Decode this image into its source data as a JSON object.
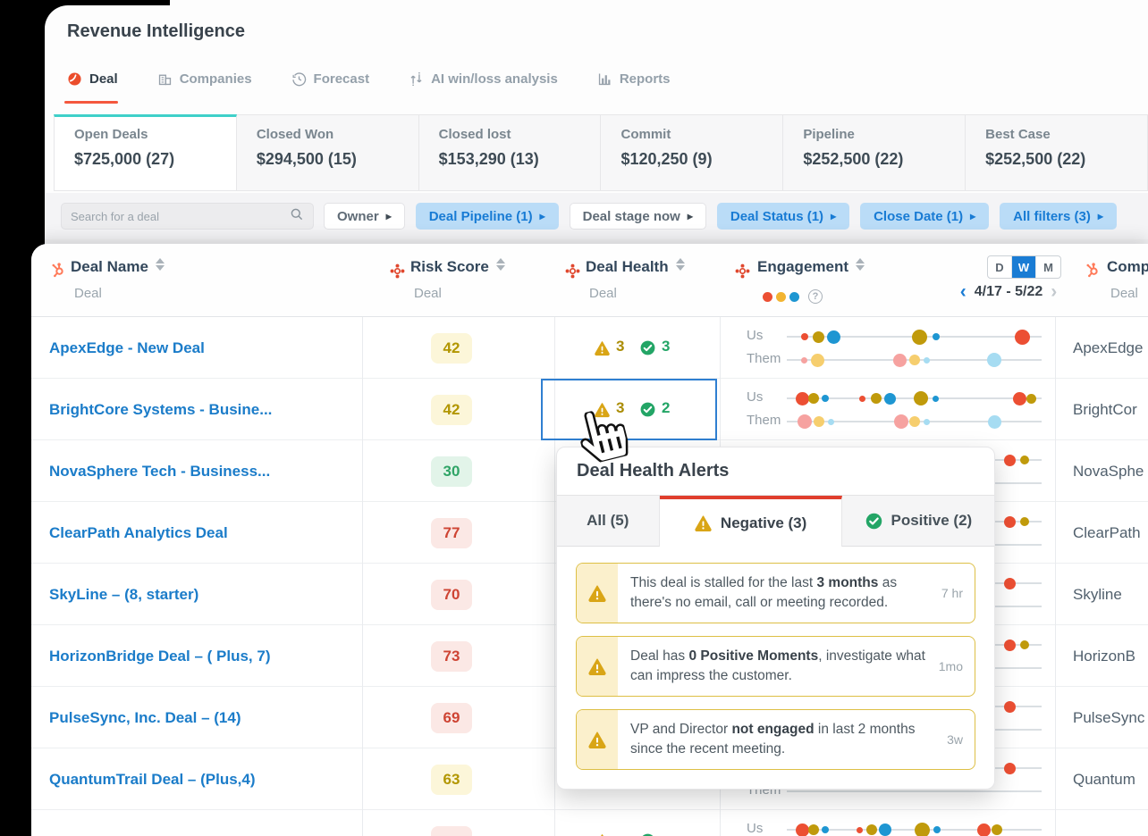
{
  "app": {
    "title": "Revenue Intelligence"
  },
  "nav": {
    "tabs": [
      {
        "label": "Deal",
        "active": true
      },
      {
        "label": "Companies",
        "active": false
      },
      {
        "label": "Forecast",
        "active": false
      },
      {
        "label": "AI win/loss analysis",
        "active": false
      },
      {
        "label": "Reports",
        "active": false
      }
    ]
  },
  "summary_cards": [
    {
      "label": "Open Deals",
      "value": "$725,000 (27)",
      "active": true
    },
    {
      "label": "Closed Won",
      "value": "$294,500 (15)",
      "active": false
    },
    {
      "label": "Closed lost",
      "value": "$153,290 (13)",
      "active": false
    },
    {
      "label": "Commit",
      "value": "$120,250 (9)",
      "active": false
    },
    {
      "label": "Pipeline",
      "value": "$252,500 (22)",
      "active": false
    },
    {
      "label": "Best Case",
      "value": "$252,500 (22)",
      "active": false
    }
  ],
  "filters": {
    "search_placeholder": "Search for a deal",
    "chips": [
      {
        "label": "Owner",
        "active": false
      },
      {
        "label": "Deal Pipeline (1)",
        "active": true
      },
      {
        "label": "Deal stage now",
        "active": false
      },
      {
        "label": "Deal Status (1)",
        "active": true
      },
      {
        "label": "Close Date (1)",
        "active": true
      },
      {
        "label": "All filters (3)",
        "active": true
      }
    ]
  },
  "table": {
    "columns": [
      {
        "label": "Deal Name",
        "sub": "Deal"
      },
      {
        "label": "Risk Score",
        "sub": "Deal"
      },
      {
        "label": "Deal Health",
        "sub": "Deal"
      },
      {
        "label": "Engagement",
        "sub": ""
      },
      {
        "label": "Comp",
        "sub": "Deal"
      }
    ],
    "period_toggle": {
      "options": [
        "D",
        "W",
        "M"
      ],
      "active": "W"
    },
    "date_range": "4/17 - 5/22",
    "help_glyph": "?",
    "engagement_row_labels": [
      "Us",
      "Them"
    ],
    "rows": [
      {
        "deal": "ApexEdge - New Deal",
        "risk": "42",
        "risk_level": "yellow",
        "health": {
          "neg": "3",
          "pos": "3"
        },
        "company": "ApexEdge",
        "selected": false,
        "engagement": {
          "us": [
            [
              0.07,
              8,
              "red"
            ],
            [
              0.125,
              13,
              "gold"
            ],
            [
              0.185,
              15,
              "blue"
            ],
            [
              0.52,
              17,
              "gold"
            ],
            [
              0.585,
              8,
              "blue"
            ],
            [
              0.925,
              17,
              "red"
            ]
          ],
          "them": [
            [
              0.07,
              7,
              "pink"
            ],
            [
              0.12,
              15,
              "lgold"
            ],
            [
              0.445,
              15,
              "pink"
            ],
            [
              0.5,
              12,
              "lgold"
            ],
            [
              0.55,
              7,
              "lblue"
            ],
            [
              0.815,
              16,
              "lblue"
            ]
          ]
        }
      },
      {
        "deal": "BrightCore Systems - Busine...",
        "risk": "42",
        "risk_level": "yellow",
        "health": {
          "neg": "3",
          "pos": "2"
        },
        "company": "BrightCor",
        "selected": true,
        "engagement": {
          "us": [
            [
              0.06,
              15,
              "red"
            ],
            [
              0.105,
              12,
              "gold"
            ],
            [
              0.15,
              8,
              "blue"
            ],
            [
              0.295,
              7,
              "red"
            ],
            [
              0.35,
              12,
              "gold"
            ],
            [
              0.405,
              13,
              "blue"
            ],
            [
              0.525,
              16,
              "gold"
            ],
            [
              0.585,
              7,
              "blue"
            ],
            [
              0.915,
              15,
              "red"
            ],
            [
              0.96,
              11,
              "gold"
            ]
          ],
          "them": [
            [
              0.07,
              16,
              "pink"
            ],
            [
              0.125,
              12,
              "lgold"
            ],
            [
              0.175,
              7,
              "lblue"
            ],
            [
              0.45,
              16,
              "pink"
            ],
            [
              0.5,
              12,
              "lgold"
            ],
            [
              0.55,
              7,
              "lblue"
            ],
            [
              0.815,
              15,
              "lblue"
            ]
          ]
        }
      },
      {
        "deal": "NovaSphere Tech - Business...",
        "risk": "30",
        "risk_level": "green",
        "health": null,
        "company": "NovaSphe",
        "selected": false,
        "engagement": {
          "us": [
            [
              0.875,
              13,
              "red"
            ],
            [
              0.935,
              10,
              "gold"
            ]
          ],
          "them": []
        }
      },
      {
        "deal": "ClearPath Analytics Deal",
        "risk": "77",
        "risk_level": "red",
        "health": null,
        "company": "ClearPath",
        "selected": false,
        "engagement": {
          "us": [
            [
              0.875,
              13,
              "red"
            ],
            [
              0.935,
              10,
              "gold"
            ]
          ],
          "them": []
        }
      },
      {
        "deal": "SkyLine – (8, starter)",
        "risk": "70",
        "risk_level": "red",
        "health": null,
        "company": "Skyline",
        "selected": false,
        "engagement": {
          "us": [
            [
              0.875,
              13,
              "red"
            ]
          ],
          "them": []
        }
      },
      {
        "deal": "HorizonBridge Deal – ( Plus, 7)",
        "risk": "73",
        "risk_level": "red",
        "health": null,
        "company": "HorizonB",
        "selected": false,
        "engagement": {
          "us": [
            [
              0.875,
              13,
              "red"
            ],
            [
              0.935,
              10,
              "gold"
            ]
          ],
          "them": []
        }
      },
      {
        "deal": "PulseSync, Inc. Deal – (14)",
        "risk": "69",
        "risk_level": "red",
        "health": null,
        "company": "PulseSync",
        "selected": false,
        "engagement": {
          "us": [
            [
              0.875,
              13,
              "red"
            ]
          ],
          "them": []
        }
      },
      {
        "deal": "QuantumTrail Deal – (Plus,4)",
        "risk": "63",
        "risk_level": "yellow",
        "health": null,
        "company": "Quantum",
        "selected": false,
        "engagement": {
          "us": [
            [
              0.875,
              13,
              "red"
            ]
          ],
          "them": []
        }
      },
      {
        "deal": "",
        "risk": "",
        "risk_level": "red",
        "health": {
          "neg": "",
          "pos": ""
        },
        "company": "",
        "selected": false,
        "engagement": {
          "us": [
            [
              0.06,
              15,
              "red"
            ],
            [
              0.105,
              12,
              "gold"
            ],
            [
              0.15,
              8,
              "blue"
            ],
            [
              0.285,
              7,
              "red"
            ],
            [
              0.335,
              12,
              "gold"
            ],
            [
              0.385,
              14,
              "blue"
            ],
            [
              0.53,
              17,
              "gold"
            ],
            [
              0.59,
              8,
              "blue"
            ],
            [
              0.775,
              15,
              "red"
            ],
            [
              0.825,
              12,
              "gold"
            ]
          ],
          "them": []
        }
      }
    ]
  },
  "popup": {
    "title": "Deal Health Alerts",
    "tabs": [
      {
        "label": "All (5)",
        "icon": "none",
        "active": false
      },
      {
        "label": "Negative (3)",
        "icon": "warning",
        "active": true
      },
      {
        "label": "Positive (2)",
        "icon": "check",
        "active": false
      }
    ],
    "alerts": [
      {
        "time": "7 hr",
        "parts": [
          {
            "t": "This deal is stalled for the last "
          },
          {
            "t": "3 months",
            "b": true
          },
          {
            "t": " as there's no email, call or meeting recorded."
          }
        ]
      },
      {
        "time": "1mo",
        "parts": [
          {
            "t": "Deal has "
          },
          {
            "t": "0 Positive Moments",
            "b": true
          },
          {
            "t": ", investigate what can impress the customer."
          }
        ]
      },
      {
        "time": "3w",
        "parts": [
          {
            "t": "VP and Director "
          },
          {
            "t": "not engaged",
            "b": true
          },
          {
            "t": " in last 2 months since the recent meeting."
          }
        ]
      }
    ]
  },
  "colors": {
    "accent_teal": "#3fd0c9",
    "brand_red": "#eb4d2c",
    "link_blue": "#1b7cc9",
    "chip_blue_bg": "#badcf7",
    "chip_blue_text": "#187bd4",
    "selection_blue": "#2f7fd1",
    "negative_gold": "#d9a516",
    "positive_green": "#23a566",
    "engagement": {
      "red": "#ec4f33",
      "gold": "#c09a0b",
      "blue": "#1e96d2",
      "pink": "#f6a2a0",
      "lgold": "#f6ce6e",
      "lblue": "#a6dcf2"
    },
    "legend": [
      "#ec4f33",
      "#f2b431",
      "#1e96d2"
    ]
  }
}
